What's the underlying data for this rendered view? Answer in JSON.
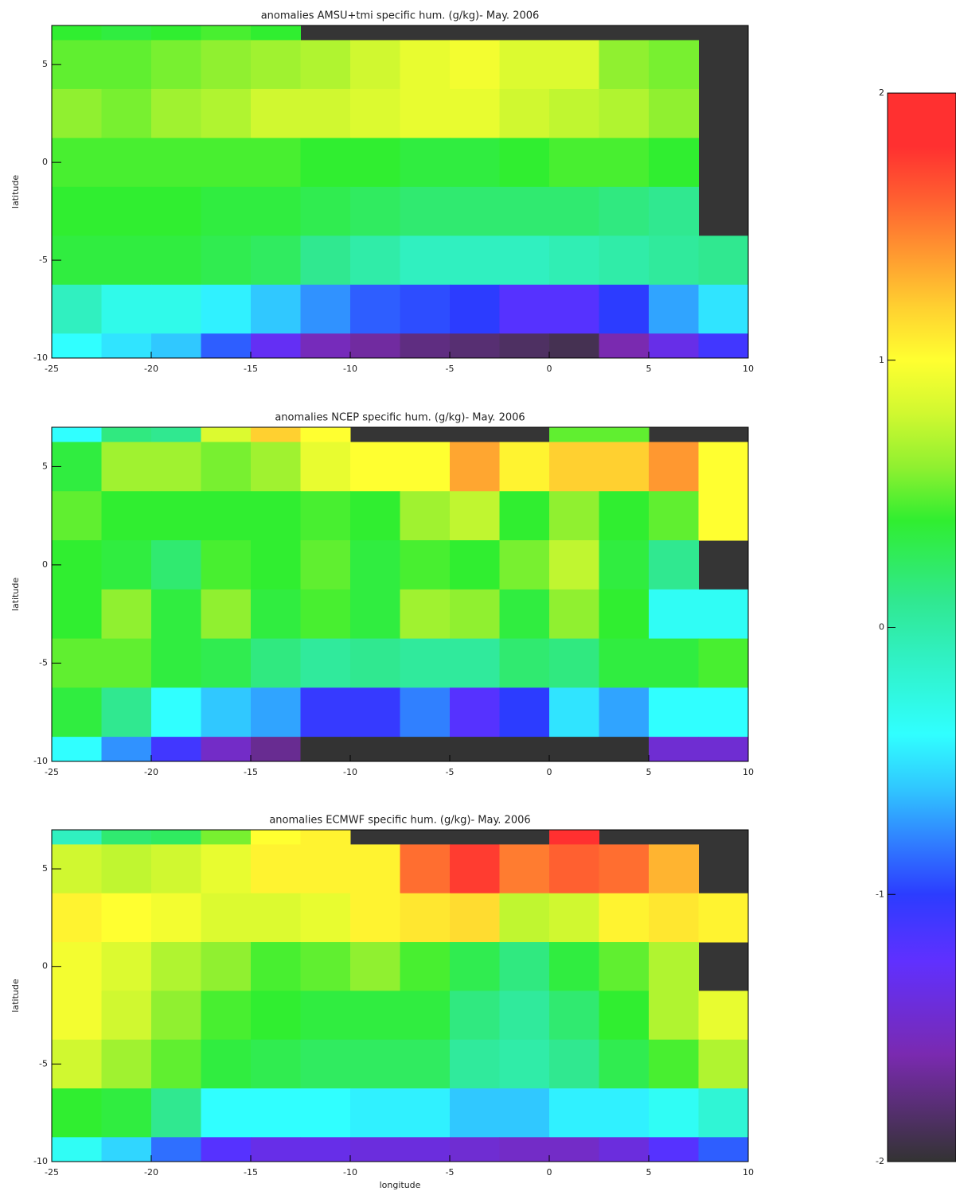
{
  "chart_data": [
    {
      "type": "heatmap",
      "title": "anomalies AMSU+tmi specific hum. (g/kg)- May. 2006",
      "ylabel": "latitude",
      "xlim": [
        -25,
        10
      ],
      "ylim": [
        -10,
        7
      ],
      "xticks": [
        -25,
        -20,
        -15,
        -10,
        -5,
        0,
        5,
        10
      ],
      "yticks": [
        -10,
        -5,
        0,
        5
      ],
      "x_edges": [
        -25,
        -22.5,
        -20,
        -17.5,
        -15,
        -12.5,
        -10,
        -7.5,
        -5,
        -2.5,
        0,
        2.5,
        5,
        7.5,
        10
      ],
      "y_edges": [
        7,
        6.25,
        3.75,
        1.25,
        -1.25,
        -3.75,
        -6.25,
        -8.75,
        -10
      ],
      "values": [
        [
          0.4,
          0.35,
          0.4,
          0.45,
          0.4,
          null,
          null,
          null,
          null,
          null,
          null,
          null,
          null,
          null
        ],
        [
          0.5,
          0.5,
          0.55,
          0.6,
          0.65,
          0.7,
          0.8,
          0.9,
          0.95,
          0.85,
          0.85,
          0.6,
          0.55,
          null
        ],
        [
          0.6,
          0.55,
          0.65,
          0.7,
          0.8,
          0.8,
          0.85,
          0.9,
          0.9,
          0.8,
          0.75,
          0.7,
          0.6,
          null
        ],
        [
          0.45,
          0.45,
          0.45,
          0.45,
          0.45,
          0.4,
          0.4,
          0.35,
          0.35,
          0.4,
          0.45,
          0.45,
          0.4,
          null
        ],
        [
          0.4,
          0.4,
          0.4,
          0.35,
          0.35,
          0.3,
          0.25,
          0.2,
          0.2,
          0.2,
          0.2,
          0.15,
          0.1,
          null
        ],
        [
          0.35,
          0.35,
          0.35,
          0.3,
          0.25,
          0.1,
          0.0,
          -0.1,
          -0.1,
          -0.1,
          -0.05,
          0.0,
          0.05,
          0.1
        ],
        [
          -0.1,
          -0.3,
          -0.3,
          -0.45,
          -0.6,
          -0.75,
          -0.9,
          -0.95,
          -1.0,
          -1.2,
          -1.2,
          -1.0,
          -0.7,
          -0.5
        ],
        [
          -0.4,
          -0.5,
          -0.6,
          -0.9,
          -1.3,
          -1.55,
          -1.65,
          -1.75,
          -1.8,
          -1.85,
          -1.9,
          -1.6,
          -1.35,
          -1.1
        ]
      ]
    },
    {
      "type": "heatmap",
      "title": "anomalies NCEP specific hum. (g/kg)- May. 2006",
      "ylabel": "latitude",
      "xlim": [
        -25,
        10
      ],
      "ylim": [
        -10,
        7
      ],
      "xticks": [
        -25,
        -20,
        -15,
        -10,
        -5,
        0,
        5,
        10
      ],
      "yticks": [
        -10,
        -5,
        0,
        5
      ],
      "x_edges": [
        -25,
        -22.5,
        -20,
        -17.5,
        -15,
        -12.5,
        -10,
        -7.5,
        -5,
        -2.5,
        0,
        2.5,
        5,
        7.5,
        10
      ],
      "y_edges": [
        7,
        6.25,
        3.75,
        1.25,
        -1.25,
        -3.75,
        -6.25,
        -8.75,
        -10
      ],
      "values": [
        [
          -0.4,
          0.15,
          0.1,
          0.85,
          1.2,
          1.0,
          null,
          null,
          null,
          null,
          0.5,
          0.5,
          null,
          null
        ],
        [
          0.35,
          0.65,
          0.65,
          0.55,
          0.65,
          0.9,
          1.0,
          1.0,
          1.35,
          1.05,
          1.2,
          1.2,
          1.4,
          1.0
        ],
        [
          0.5,
          0.4,
          0.4,
          0.4,
          0.4,
          0.45,
          0.4,
          0.65,
          0.75,
          0.4,
          0.6,
          0.4,
          0.5,
          1.0
        ],
        [
          0.4,
          0.35,
          0.2,
          0.45,
          0.4,
          0.5,
          0.35,
          0.45,
          0.4,
          0.55,
          0.75,
          0.35,
          0.1,
          null
        ],
        [
          0.4,
          0.6,
          0.35,
          0.6,
          0.35,
          0.45,
          0.35,
          0.65,
          0.6,
          0.35,
          0.6,
          0.4,
          -0.35,
          -0.35
        ],
        [
          0.5,
          0.5,
          0.35,
          0.3,
          0.15,
          0.05,
          0.1,
          0.05,
          0.05,
          0.2,
          0.15,
          0.35,
          0.35,
          0.45
        ],
        [
          0.35,
          0.1,
          -0.4,
          -0.6,
          -0.7,
          -1.05,
          -1.05,
          -0.8,
          -1.2,
          -1.0,
          -0.5,
          -0.7,
          -0.4,
          -0.4
        ],
        [
          -0.4,
          -0.75,
          -1.1,
          -1.5,
          -1.7,
          -2,
          -2,
          -2,
          -2,
          -2,
          -2,
          -2,
          -1.45,
          -1.45
        ]
      ]
    },
    {
      "type": "heatmap",
      "title": "anomalies ECMWF specific hum. (g/kg)- May. 2006",
      "ylabel": "latitude",
      "xlabel": "longitude",
      "xlim": [
        -25,
        10
      ],
      "ylim": [
        -10,
        7
      ],
      "xticks": [
        -25,
        -20,
        -15,
        -10,
        -5,
        0,
        5,
        10
      ],
      "yticks": [
        -10,
        -5,
        0,
        5
      ],
      "x_edges": [
        -25,
        -22.5,
        -20,
        -17.5,
        -15,
        -12.5,
        -10,
        -7.5,
        -5,
        -2.5,
        0,
        2.5,
        5,
        7.5,
        10
      ],
      "y_edges": [
        7,
        6.25,
        3.75,
        1.25,
        -1.25,
        -3.75,
        -6.25,
        -8.75,
        -10
      ],
      "values": [
        [
          -0.1,
          0.2,
          0.25,
          0.55,
          1.0,
          1.05,
          null,
          null,
          null,
          null,
          1.8,
          null,
          null,
          null
        ],
        [
          0.8,
          0.75,
          0.8,
          0.9,
          1.05,
          1.05,
          1.05,
          1.55,
          1.75,
          1.5,
          1.6,
          1.55,
          1.3,
          null
        ],
        [
          1.05,
          1.0,
          0.95,
          0.85,
          0.85,
          0.9,
          1.05,
          1.1,
          1.15,
          0.75,
          0.8,
          1.05,
          1.1,
          1.05
        ],
        [
          0.95,
          0.85,
          0.7,
          0.6,
          0.45,
          0.5,
          0.6,
          0.45,
          0.3,
          0.15,
          0.35,
          0.5,
          0.7,
          null
        ],
        [
          0.95,
          0.8,
          0.6,
          0.45,
          0.4,
          0.35,
          0.35,
          0.35,
          0.15,
          0.05,
          0.2,
          0.4,
          0.7,
          0.9
        ],
        [
          0.8,
          0.65,
          0.5,
          0.35,
          0.3,
          0.25,
          0.25,
          0.25,
          0.05,
          0.0,
          0.1,
          0.3,
          0.45,
          0.7
        ],
        [
          0.4,
          0.35,
          0.1,
          -0.4,
          -0.4,
          -0.4,
          -0.45,
          -0.45,
          -0.6,
          -0.6,
          -0.45,
          -0.45,
          -0.35,
          -0.2
        ],
        [
          -0.35,
          -0.55,
          -0.85,
          -1.2,
          -1.35,
          -1.35,
          -1.4,
          -1.4,
          -1.45,
          -1.5,
          -1.5,
          -1.4,
          -1.2,
          -0.9
        ]
      ]
    }
  ],
  "colorbar": {
    "lim": [
      -2,
      2
    ],
    "ticks": [
      -2,
      -1,
      0,
      1,
      2
    ]
  },
  "colorscale": [
    [
      -2,
      "#333333"
    ],
    [
      -1.6,
      "#7a2ab0"
    ],
    [
      -1.25,
      "#6030ff"
    ],
    [
      -1,
      "#2c3cff"
    ],
    [
      -0.8,
      "#3080ff"
    ],
    [
      -0.6,
      "#30c8ff"
    ],
    [
      -0.4,
      "#30ffff"
    ],
    [
      -0.1,
      "#30f0c0"
    ],
    [
      0.1,
      "#30e890"
    ],
    [
      0.4,
      "#30ee30"
    ],
    [
      0.6,
      "#90f030"
    ],
    [
      0.8,
      "#d0f830"
    ],
    [
      1,
      "#ffff30"
    ],
    [
      1.2,
      "#ffd030"
    ],
    [
      1.4,
      "#ff9830"
    ],
    [
      1.6,
      "#ff6030"
    ],
    [
      1.8,
      "#ff3030"
    ],
    [
      2,
      "#ff3030"
    ]
  ]
}
